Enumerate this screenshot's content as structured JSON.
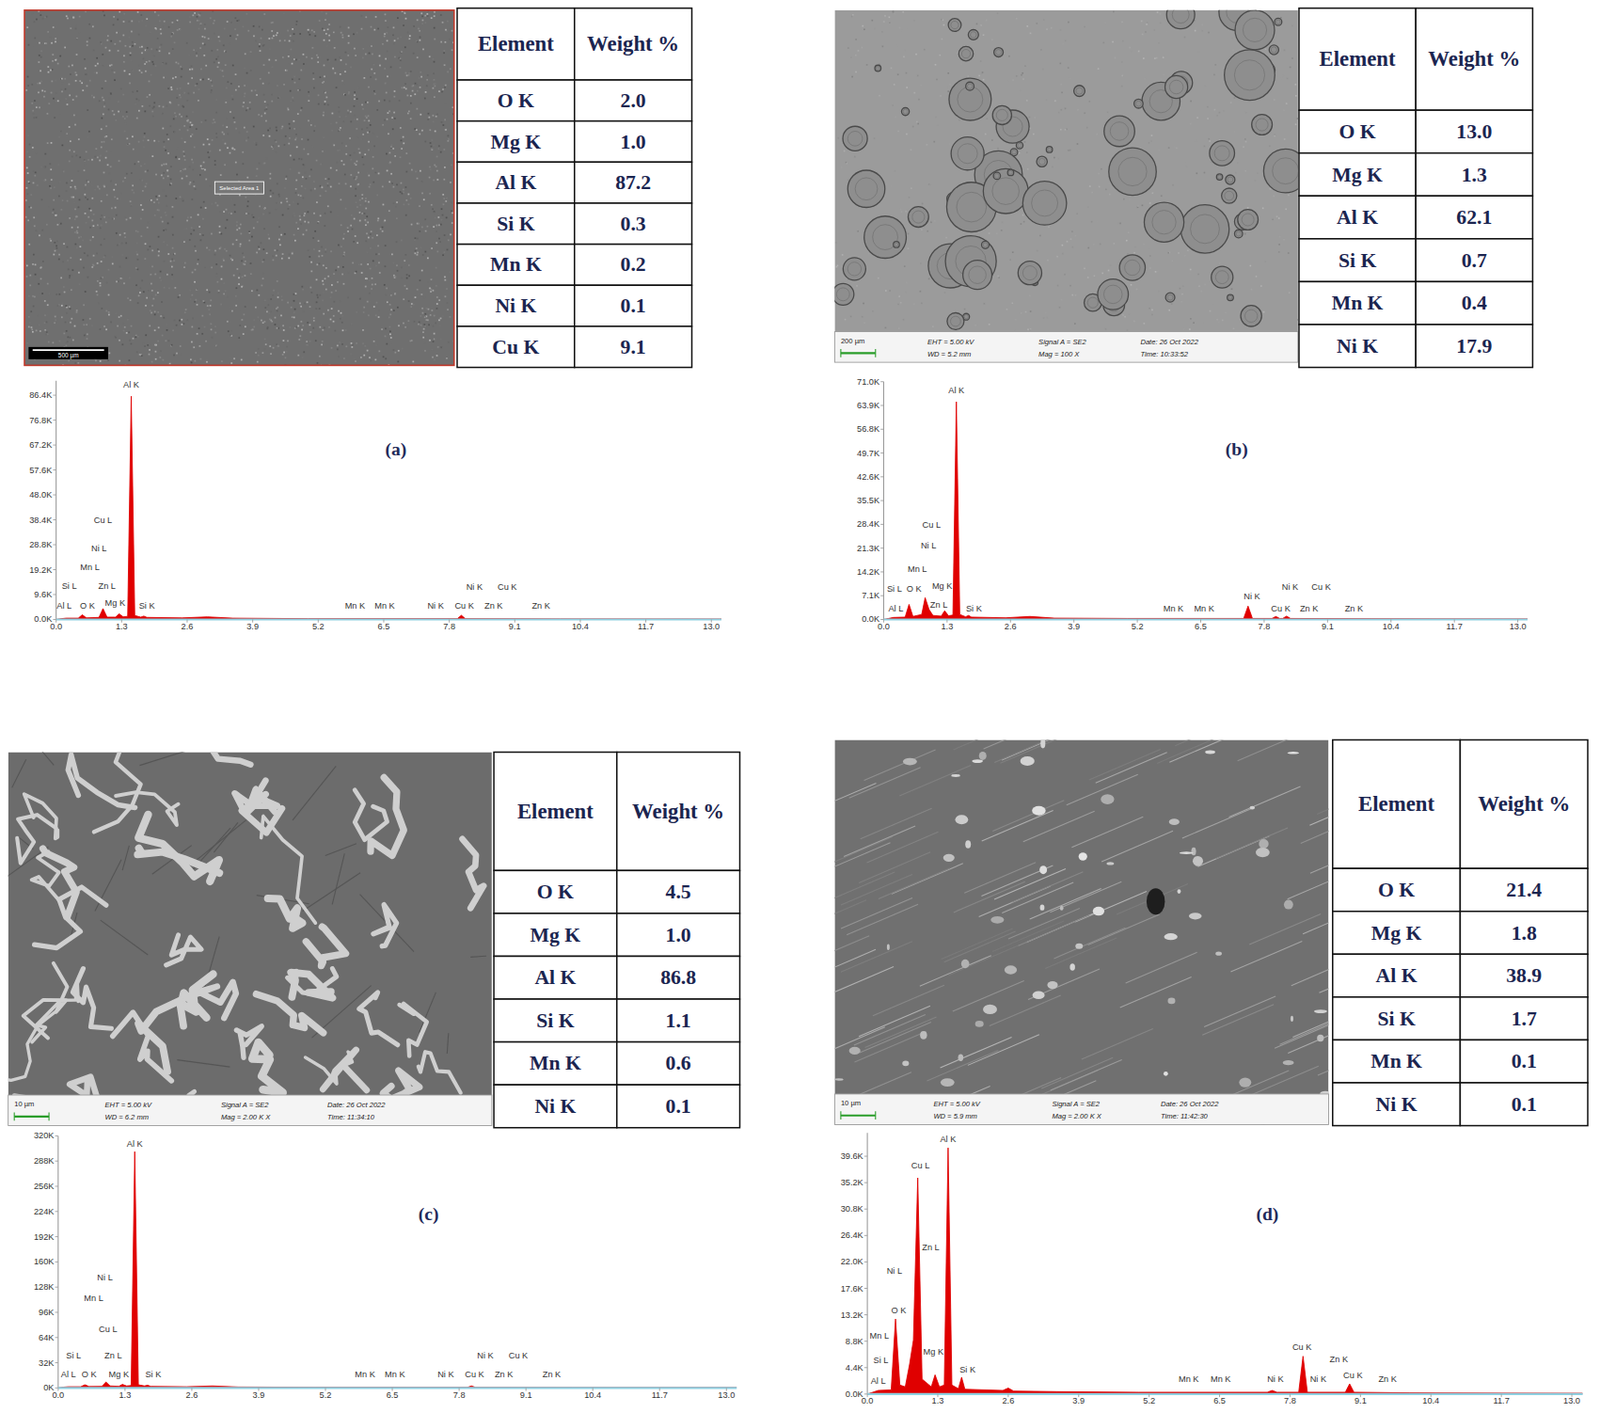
{
  "panels": [
    {
      "label": "(a)",
      "image": {
        "scale_bar": "500 µm",
        "texts": [
          "Selected Area 1"
        ]
      },
      "table": {
        "header": [
          "Element",
          "Weight %"
        ],
        "rows": [
          [
            "O K",
            "2.0"
          ],
          [
            "Mg K",
            "1.0"
          ],
          [
            "Al K",
            "87.2"
          ],
          [
            "Si K",
            "0.3"
          ],
          [
            "Mn K",
            "0.2"
          ],
          [
            "Ni K",
            "0.1"
          ],
          [
            "Cu K",
            "9.1"
          ]
        ]
      }
    },
    {
      "label": "(b)",
      "image": {
        "scale_bar": "200 µm",
        "texts": [
          "EHT = 5.00 kV",
          "WD = 5.2 mm",
          "Signal A = SE2",
          "Mag = 100 X",
          "Date: 26 Oct 2022",
          "Time: 10:33:52"
        ]
      },
      "table": {
        "header": [
          "Element",
          "Weight %"
        ],
        "rows": [
          [
            "O K",
            "13.0"
          ],
          [
            "Mg K",
            "1.3"
          ],
          [
            "Al K",
            "62.1"
          ],
          [
            "Si K",
            "0.7"
          ],
          [
            "Mn K",
            "0.4"
          ],
          [
            "Ni K",
            "17.9"
          ]
        ]
      }
    },
    {
      "label": "(c)",
      "image": {
        "scale_bar": "10 µm",
        "texts": [
          "EHT = 5.00 kV",
          "WD = 6.2 mm",
          "Signal A = SE2",
          "Mag = 2.00 K X",
          "Date: 26 Oct 2022",
          "Time: 11:34:10"
        ]
      },
      "table": {
        "header": [
          "Element",
          "Weight %"
        ],
        "rows": [
          [
            "O K",
            "4.5"
          ],
          [
            "Mg K",
            "1.0"
          ],
          [
            "Al K",
            "86.8"
          ],
          [
            "Si K",
            "1.1"
          ],
          [
            "Mn K",
            "0.6"
          ],
          [
            "Ni K",
            "0.1"
          ]
        ]
      }
    },
    {
      "label": "(d)",
      "image": {
        "scale_bar": "10 µm",
        "texts": [
          "EHT = 5.00 kV",
          "WD = 5.9 mm",
          "Signal A = SE2",
          "Mag = 2.00 K X",
          "Date: 26 Oct 2022",
          "Time: 11:42:30"
        ]
      },
      "table": {
        "header": [
          "Element",
          "Weight %"
        ],
        "rows": [
          [
            "O K",
            "21.4"
          ],
          [
            "Mg K",
            "1.8"
          ],
          [
            "Al K",
            "38.9"
          ],
          [
            "Si K",
            "1.7"
          ],
          [
            "Mn K",
            "0.1"
          ],
          [
            "Ni K",
            "0.1"
          ]
        ]
      }
    }
  ],
  "chart_data": [
    {
      "type": "area",
      "color": "#e00000",
      "xlim": [
        0,
        13.2
      ],
      "ylim": [
        0,
        92000
      ],
      "xticks": [
        {
          "value": 0,
          "label": "0.0"
        },
        1.3,
        2.6,
        3.9,
        5.2,
        6.5,
        7.8,
        9.1,
        10.4,
        11.7,
        {
          "value": 13,
          "label": "13.0"
        }
      ],
      "yticks": [
        {
          "value": 0,
          "label": "0.0K"
        },
        {
          "value": 9600,
          "label": "9.6K"
        },
        {
          "value": 19200,
          "label": "19.2K"
        },
        {
          "value": 28800,
          "label": "28.8K"
        },
        {
          "value": 38400,
          "label": "38.4K"
        },
        {
          "value": 48000,
          "label": "48.0K"
        },
        {
          "value": 57600,
          "label": "57.6K"
        },
        {
          "value": 67200,
          "label": "67.2K"
        },
        {
          "value": 76800,
          "label": "76.8K"
        },
        {
          "value": 86400,
          "label": "86.4K"
        }
      ],
      "x": [
        0,
        0.1,
        0.2,
        0.44,
        0.52,
        0.6,
        0.85,
        0.93,
        1.01,
        1.18,
        1.25,
        1.33,
        1.42,
        1.49,
        1.56,
        1.68,
        1.74,
        1.8,
        2.5,
        3.0,
        3.5,
        5.0,
        7.96,
        8.04,
        8.12,
        10.0,
        13.2
      ],
      "values": [
        0,
        300,
        500,
        500,
        1800,
        600,
        800,
        4200,
        900,
        900,
        2200,
        1000,
        1200,
        86000,
        1500,
        900,
        1300,
        800,
        600,
        1000,
        500,
        300,
        300,
        1600,
        300,
        200,
        100
      ],
      "annotations": [
        {
          "text": "Al K",
          "x": 1.49,
          "y": 89500
        },
        {
          "text": "Cu L",
          "x": 0.93,
          "y": 37300
        },
        {
          "text": "Ni L",
          "x": 0.85,
          "y": 26300
        },
        {
          "text": "Mn L",
          "x": 0.67,
          "y": 18850
        },
        {
          "text": "Si L",
          "x": 0.26,
          "y": 11800
        },
        {
          "text": "Zn L",
          "x": 1.01,
          "y": 11800
        },
        {
          "text": "Al L",
          "x": 0.16,
          "y": 4300
        },
        {
          "text": "O K",
          "x": 0.62,
          "y": 4300
        },
        {
          "text": "Mg K",
          "x": 1.17,
          "y": 5100
        },
        {
          "text": "Si K",
          "x": 1.8,
          "y": 4300
        },
        {
          "text": "Mn K",
          "x": 5.93,
          "y": 4300
        },
        {
          "text": "Mn K",
          "x": 6.52,
          "y": 4300
        },
        {
          "text": "Ni K",
          "x": 7.53,
          "y": 4300
        },
        {
          "text": "Cu K",
          "x": 8.1,
          "y": 4300
        },
        {
          "text": "Zn K",
          "x": 8.68,
          "y": 4300
        },
        {
          "text": "Ni K",
          "x": 8.3,
          "y": 11400
        },
        {
          "text": "Cu K",
          "x": 8.95,
          "y": 11400
        },
        {
          "text": "Zn K",
          "x": 9.62,
          "y": 4300
        }
      ]
    },
    {
      "type": "area",
      "color": "#e00000",
      "xlim": [
        0,
        13.2
      ],
      "ylim": [
        0,
        71000
      ],
      "xticks": [
        {
          "value": 0,
          "label": "0.0"
        },
        1.3,
        2.6,
        3.9,
        5.2,
        6.5,
        7.8,
        9.1,
        10.4,
        11.7,
        {
          "value": 13,
          "label": "13.0"
        }
      ],
      "yticks": [
        {
          "value": 0,
          "label": "0.0K"
        },
        {
          "value": 7100,
          "label": "7.1K"
        },
        {
          "value": 14200,
          "label": "14.2K"
        },
        {
          "value": 21300,
          "label": "21.3K"
        },
        {
          "value": 28400,
          "label": "28.4K"
        },
        {
          "value": 35500,
          "label": "35.5K"
        },
        {
          "value": 42600,
          "label": "42.6K"
        },
        {
          "value": 49700,
          "label": "49.7K"
        },
        {
          "value": 56800,
          "label": "56.8K"
        },
        {
          "value": 63900,
          "label": "63.9K"
        },
        {
          "value": 71000,
          "label": "71.0K"
        }
      ],
      "x": [
        0,
        0.1,
        0.2,
        0.44,
        0.52,
        0.6,
        0.78,
        0.85,
        0.93,
        1.01,
        1.18,
        1.25,
        1.33,
        1.42,
        1.49,
        1.56,
        1.68,
        1.74,
        1.8,
        2.5,
        3.0,
        3.5,
        5.0,
        7.38,
        7.47,
        7.56,
        7.96,
        8.04,
        8.12,
        8.18,
        8.26,
        8.34,
        10.0,
        13.2
      ],
      "values": [
        0,
        300,
        600,
        700,
        4500,
        900,
        1500,
        6500,
        3000,
        1200,
        1000,
        2600,
        1100,
        1300,
        65000,
        1500,
        800,
        1200,
        700,
        500,
        900,
        400,
        300,
        300,
        4000,
        300,
        300,
        900,
        300,
        300,
        1000,
        300,
        200,
        100
      ],
      "annotations": [
        {
          "text": "Al K",
          "x": 1.49,
          "y": 67500
        },
        {
          "text": "Cu L",
          "x": 0.98,
          "y": 27400
        },
        {
          "text": "Ni L",
          "x": 0.92,
          "y": 21300
        },
        {
          "text": "Mn L",
          "x": 0.69,
          "y": 14300
        },
        {
          "text": "Mg K",
          "x": 1.2,
          "y": 9100
        },
        {
          "text": "Si L",
          "x": 0.22,
          "y": 8200
        },
        {
          "text": "O K",
          "x": 0.62,
          "y": 8200
        },
        {
          "text": "Al L",
          "x": 0.25,
          "y": 2500
        },
        {
          "text": "Zn L",
          "x": 1.13,
          "y": 3500
        },
        {
          "text": "Si K",
          "x": 1.85,
          "y": 2500
        },
        {
          "text": "Mn K",
          "x": 5.94,
          "y": 2500
        },
        {
          "text": "Mn K",
          "x": 6.57,
          "y": 2500
        },
        {
          "text": "Ni K",
          "x": 7.55,
          "y": 6100
        },
        {
          "text": "Ni K",
          "x": 8.33,
          "y": 8800
        },
        {
          "text": "Cu K",
          "x": 8.14,
          "y": 2500
        },
        {
          "text": "Cu K",
          "x": 8.97,
          "y": 8800
        },
        {
          "text": "Zn K",
          "x": 8.72,
          "y": 2500
        },
        {
          "text": "Zn K",
          "x": 9.64,
          "y": 2500
        }
      ]
    },
    {
      "type": "area",
      "color": "#e00000",
      "xlim": [
        0,
        13.2
      ],
      "ylim": [
        0,
        320000
      ],
      "xticks": [
        {
          "value": 0,
          "label": "0.0"
        },
        1.3,
        2.6,
        3.9,
        5.2,
        6.5,
        7.8,
        9.1,
        10.4,
        11.7,
        {
          "value": 13,
          "label": "13.0"
        }
      ],
      "yticks": [
        {
          "value": 0,
          "label": "0K"
        },
        {
          "value": 32000,
          "label": "32K"
        },
        {
          "value": 64000,
          "label": "64K"
        },
        {
          "value": 96000,
          "label": "96K"
        },
        {
          "value": 128000,
          "label": "128K"
        },
        {
          "value": 160000,
          "label": "160K"
        },
        {
          "value": 192000,
          "label": "192K"
        },
        {
          "value": 224000,
          "label": "224K"
        },
        {
          "value": 256000,
          "label": "256K"
        },
        {
          "value": 288000,
          "label": "288K"
        },
        {
          "value": 320000,
          "label": "320K"
        }
      ],
      "x": [
        0,
        0.1,
        0.2,
        0.44,
        0.52,
        0.6,
        0.85,
        0.93,
        1.01,
        1.18,
        1.25,
        1.33,
        1.42,
        1.49,
        1.56,
        1.68,
        1.74,
        1.8,
        2.5,
        3.0,
        3.5,
        5.0,
        7.96,
        8.04,
        8.12,
        10.0,
        13.2
      ],
      "values": [
        0,
        1000,
        1500,
        1500,
        4000,
        1800,
        2000,
        7500,
        2500,
        2000,
        4500,
        2500,
        3000,
        300000,
        4000,
        2500,
        3500,
        2000,
        1500,
        2500,
        1200,
        800,
        700,
        2500,
        700,
        500,
        300
      ],
      "annotations": [
        {
          "text": "Al K",
          "x": 1.49,
          "y": 306000
        },
        {
          "text": "Ni L",
          "x": 0.91,
          "y": 137000
        },
        {
          "text": "Mn L",
          "x": 0.69,
          "y": 110000
        },
        {
          "text": "Cu L",
          "x": 0.97,
          "y": 71000
        },
        {
          "text": "Si L",
          "x": 0.3,
          "y": 37600
        },
        {
          "text": "Zn L",
          "x": 1.07,
          "y": 37600
        },
        {
          "text": "Al L",
          "x": 0.2,
          "y": 13000
        },
        {
          "text": "O K",
          "x": 0.6,
          "y": 13000
        },
        {
          "text": "Mg K",
          "x": 1.18,
          "y": 13000
        },
        {
          "text": "Si K",
          "x": 1.85,
          "y": 13000
        },
        {
          "text": "Mn K",
          "x": 5.97,
          "y": 13000
        },
        {
          "text": "Mn K",
          "x": 6.55,
          "y": 13000
        },
        {
          "text": "Ni K",
          "x": 7.54,
          "y": 13000
        },
        {
          "text": "Cu K",
          "x": 8.1,
          "y": 13000
        },
        {
          "text": "Zn K",
          "x": 8.67,
          "y": 13000
        },
        {
          "text": "Ni K",
          "x": 8.31,
          "y": 37600
        },
        {
          "text": "Cu K",
          "x": 8.95,
          "y": 37600
        },
        {
          "text": "Zn K",
          "x": 9.6,
          "y": 13000
        }
      ]
    },
    {
      "type": "area",
      "color": "#e00000",
      "xlim": [
        0,
        13.2
      ],
      "ylim": [
        0,
        43500
      ],
      "xticks": [
        {
          "value": 0,
          "label": "0.0"
        },
        1.3,
        2.6,
        3.9,
        5.2,
        6.5,
        7.8,
        9.1,
        10.4,
        11.7,
        {
          "value": 13,
          "label": "13.0"
        }
      ],
      "yticks": [
        {
          "value": 0,
          "label": "0.0K"
        },
        {
          "value": 4400,
          "label": "4.4K"
        },
        {
          "value": 8800,
          "label": "8.8K"
        },
        {
          "value": 13200,
          "label": "13.2K"
        },
        {
          "value": 17600,
          "label": "17.6K"
        },
        {
          "value": 22000,
          "label": "22.0K"
        },
        {
          "value": 26400,
          "label": "26.4K"
        },
        {
          "value": 30800,
          "label": "30.8K"
        },
        {
          "value": 35200,
          "label": "35.2K"
        },
        {
          "value": 39600,
          "label": "39.6K"
        }
      ],
      "x": [
        0,
        0.1,
        0.2,
        0.44,
        0.52,
        0.6,
        0.7,
        0.78,
        0.85,
        0.93,
        1.01,
        1.18,
        1.25,
        1.33,
        1.42,
        1.49,
        1.56,
        1.68,
        1.74,
        1.8,
        2.5,
        2.6,
        2.7,
        3.5,
        5.0,
        7.38,
        7.47,
        7.56,
        7.96,
        8.04,
        8.12,
        8.82,
        8.9,
        8.98,
        10.0,
        13.2
      ],
      "values": [
        0,
        300,
        600,
        700,
        12500,
        1500,
        1200,
        5000,
        9000,
        36000,
        2500,
        1200,
        3200,
        1200,
        1500,
        41000,
        1500,
        900,
        2800,
        800,
        600,
        1000,
        500,
        400,
        300,
        300,
        600,
        300,
        300,
        6300,
        300,
        300,
        1700,
        300,
        200,
        100
      ],
      "annotations": [
        {
          "text": "Al K",
          "x": 1.49,
          "y": 41900
        },
        {
          "text": "Cu L",
          "x": 0.98,
          "y": 37600
        },
        {
          "text": "Ni L",
          "x": 0.5,
          "y": 20000
        },
        {
          "text": "O K",
          "x": 0.58,
          "y": 13500
        },
        {
          "text": "Mn L",
          "x": 0.22,
          "y": 9200
        },
        {
          "text": "Mg K",
          "x": 1.22,
          "y": 6600
        },
        {
          "text": "Si L",
          "x": 0.25,
          "y": 5100
        },
        {
          "text": "Zn L",
          "x": 1.17,
          "y": 24000
        },
        {
          "text": "Si K",
          "x": 1.85,
          "y": 3600
        },
        {
          "text": "Al L",
          "x": 0.2,
          "y": 1700
        },
        {
          "text": "Mn K",
          "x": 5.93,
          "y": 2000
        },
        {
          "text": "Mn K",
          "x": 6.52,
          "y": 2000
        },
        {
          "text": "Ni K",
          "x": 7.53,
          "y": 2000
        },
        {
          "text": "Cu K",
          "x": 8.02,
          "y": 7300
        },
        {
          "text": "Zn K",
          "x": 8.7,
          "y": 5300
        },
        {
          "text": "Ni K",
          "x": 8.32,
          "y": 2000
        },
        {
          "text": "Cu K",
          "x": 8.96,
          "y": 2700
        },
        {
          "text": "Zn K",
          "x": 9.6,
          "y": 2000
        }
      ]
    }
  ]
}
